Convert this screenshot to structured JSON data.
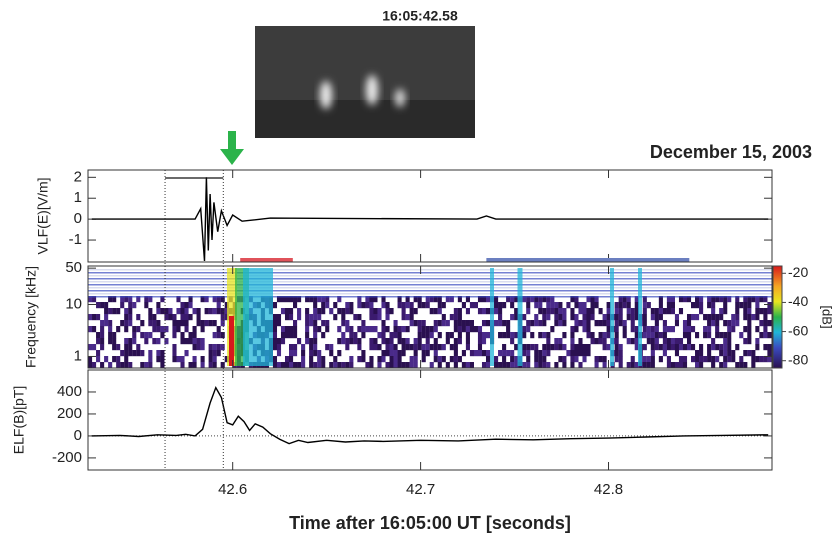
{
  "image_caption": "16:05:42.58",
  "date": "December 15, 2003",
  "chart_data": [
    {
      "type": "line",
      "ylabel": "VLF(E)[V/m]",
      "xlim": [
        42.523,
        42.887
      ],
      "ylim": [
        -2.05,
        2.35
      ],
      "yticks": [
        2,
        1,
        0,
        -1
      ],
      "x": [
        42.525,
        42.56,
        42.58,
        42.583,
        42.585,
        42.586,
        42.587,
        42.588,
        42.589,
        42.59,
        42.592,
        42.594,
        42.597,
        42.6,
        42.605,
        42.62,
        42.73,
        42.735,
        42.74,
        42.885
      ],
      "values": [
        0,
        0,
        0,
        0.5,
        -2,
        2,
        -1.5,
        1.2,
        -1,
        0.8,
        -0.6,
        0.4,
        -0.3,
        0.2,
        -0.1,
        0.05,
        0,
        0.15,
        0,
        0
      ],
      "color": "#000000",
      "vlines": [
        42.564,
        42.595
      ],
      "intervals": [
        {
          "color": "#e0525a",
          "range": [
            42.604,
            42.632
          ]
        },
        {
          "color": "#6b7fc0",
          "range": [
            42.735,
            42.843
          ]
        }
      ]
    },
    {
      "type": "spectrogram",
      "ylabel": "Frequency [kHz]",
      "xlim": [
        42.523,
        42.887
      ],
      "ylim": [
        0.6,
        55
      ],
      "log": true,
      "yticks": [
        50,
        10,
        1
      ],
      "colorbar": {
        "label": "[dB]",
        "lim": [
          -85,
          -15
        ],
        "ticks": [
          -20,
          -40,
          -60,
          -80
        ]
      }
    },
    {
      "type": "line",
      "ylabel": "ELF(B)[pT]",
      "xlabel": "Time after 16:05:00 UT [seconds]",
      "xlim": [
        42.523,
        42.887
      ],
      "ylim": [
        -310,
        600
      ],
      "yticks": [
        400,
        200,
        0,
        -200
      ],
      "xticks": [
        42.6,
        42.7,
        42.8
      ],
      "x": [
        42.525,
        42.54,
        42.55,
        42.56,
        42.57,
        42.575,
        42.58,
        42.584,
        42.588,
        42.591,
        42.594,
        42.597,
        42.6,
        42.603,
        42.606,
        42.609,
        42.612,
        42.616,
        42.62,
        42.625,
        42.63,
        42.635,
        42.64,
        42.65,
        42.66,
        42.67,
        42.68,
        42.7,
        42.72,
        42.74,
        42.76,
        42.78,
        42.8,
        42.82,
        42.84,
        42.86,
        42.885
      ],
      "values": [
        0,
        5,
        -5,
        10,
        5,
        15,
        0,
        60,
        300,
        440,
        350,
        120,
        100,
        180,
        130,
        50,
        110,
        80,
        20,
        -30,
        -70,
        -40,
        -60,
        -40,
        -55,
        -45,
        -50,
        -40,
        -45,
        -30,
        -35,
        -25,
        -20,
        -10,
        0,
        5,
        10
      ],
      "color": "#000000"
    }
  ]
}
